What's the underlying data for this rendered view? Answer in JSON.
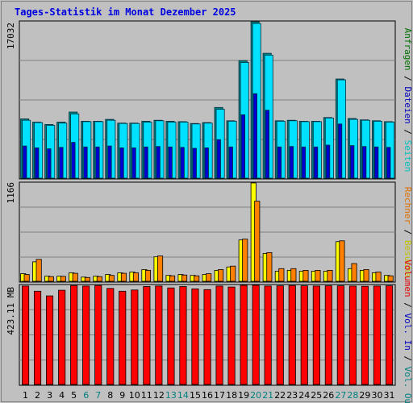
{
  "chart_data": {
    "type": "bar",
    "title": "Tages-Statistik im Monat Dezember 2025",
    "categories": [
      "1",
      "2",
      "3",
      "4",
      "5",
      "6",
      "7",
      "8",
      "9",
      "10",
      "11",
      "12",
      "13",
      "14",
      "15",
      "16",
      "17",
      "18",
      "19",
      "20",
      "21",
      "22",
      "23",
      "24",
      "25",
      "26",
      "27",
      "28",
      "29",
      "30",
      "31"
    ],
    "weekend_days": [
      "6",
      "7",
      "13",
      "14",
      "20",
      "21",
      "27",
      "28"
    ],
    "panels": [
      {
        "id": "requests",
        "ylabel_parts": [
          {
            "text": "Anfragen",
            "color": "#007000"
          },
          {
            "text": " / ",
            "color": "#000000"
          },
          {
            "text": "Dateien",
            "color": "#0000c0"
          },
          {
            "text": " / ",
            "color": "#000000"
          },
          {
            "text": "Seiten",
            "color": "#00c0c0"
          }
        ],
        "max_label": "17032",
        "ylim": [
          0,
          17032
        ],
        "series": [
          {
            "name": "Anfragen",
            "color": "#008080",
            "values": [
              6450,
              6100,
              5850,
              6100,
              7200,
              6200,
              6200,
              6400,
              6000,
              6000,
              6200,
              6300,
              6200,
              6150,
              5950,
              6050,
              7700,
              6250,
              12800,
              17032,
              13600,
              6250,
              6300,
              6200,
              6200,
              6600,
              10800,
              6500,
              6350,
              6250,
              6150
            ]
          },
          {
            "name": "Seiten",
            "color": "#00e0ff",
            "values": [
              6300,
              6050,
              5750,
              6000,
              7000,
              6150,
              6150,
              6300,
              5950,
              5950,
              6100,
              6250,
              6100,
              6100,
              5900,
              6000,
              7500,
              6200,
              12600,
              16850,
              13400,
              6200,
              6250,
              6150,
              6150,
              6550,
              10700,
              6400,
              6300,
              6200,
              6100
            ]
          },
          {
            "name": "Dateien",
            "color": "#0000d0",
            "values": [
              3500,
              3300,
              3200,
              3350,
              3900,
              3400,
              3400,
              3500,
              3300,
              3300,
              3400,
              3450,
              3400,
              3350,
              3250,
              3300,
              4200,
              3400,
              6900,
              9200,
              7400,
              3400,
              3450,
              3400,
              3400,
              3600,
              5900,
              3550,
              3450,
              3400,
              3350
            ]
          }
        ]
      },
      {
        "id": "visits",
        "ylabel_parts": [
          {
            "text": "Rechner",
            "color": "#e07000"
          },
          {
            "text": " / ",
            "color": "#000000"
          },
          {
            "text": "Besuche",
            "color": "#c0c000"
          }
        ],
        "max_label": "1166",
        "ylim": [
          0,
          1166
        ],
        "series": [
          {
            "name": "Besuche",
            "color": "#ffff00",
            "values": [
              90,
              230,
              60,
              60,
              100,
              50,
              60,
              80,
              100,
              110,
              140,
              290,
              70,
              80,
              70,
              80,
              130,
              170,
              490,
              1166,
              330,
              120,
              130,
              120,
              120,
              120,
              470,
              150,
              130,
              100,
              70
            ]
          },
          {
            "name": "Rechner",
            "color": "#ff8000",
            "values": [
              80,
              260,
              55,
              58,
              95,
              45,
              55,
              70,
              95,
              100,
              130,
              300,
              65,
              75,
              65,
              90,
              140,
              180,
              500,
              950,
              340,
              150,
              150,
              130,
              130,
              130,
              480,
              210,
              140,
              110,
              65
            ]
          }
        ]
      },
      {
        "id": "volume",
        "ylabel_parts": [
          {
            "text": "Volumen",
            "color": "#e00000"
          },
          {
            "text": " / ",
            "color": "#000000"
          },
          {
            "text": "Vol. In",
            "color": "#0000c0"
          },
          {
            "text": " / ",
            "color": "#000000"
          },
          {
            "text": "Vol. Out",
            "color": "#008080"
          }
        ],
        "max_label": "423.11 MB",
        "ylim": [
          0,
          423.11
        ],
        "series": [
          {
            "name": "Volumen",
            "color": "#ff0000",
            "values": [
              420,
              398,
              378,
              402,
              422,
              420,
              422,
              410,
              398,
              403,
              418,
              420,
              412,
              418,
              408,
              405,
              420,
              416,
              423.11,
              423,
              420,
              421,
              422,
              421,
              420,
              421,
              421,
              420,
              419,
              420,
              421
            ]
          }
        ]
      }
    ]
  }
}
